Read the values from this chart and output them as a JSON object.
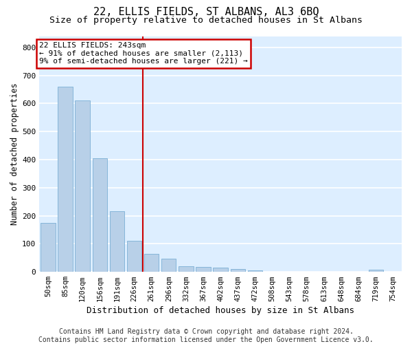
{
  "title": "22, ELLIS FIELDS, ST ALBANS, AL3 6BQ",
  "subtitle": "Size of property relative to detached houses in St Albans",
  "xlabel": "Distribution of detached houses by size in St Albans",
  "ylabel": "Number of detached properties",
  "footer_line1": "Contains HM Land Registry data © Crown copyright and database right 2024.",
  "footer_line2": "Contains public sector information licensed under the Open Government Licence v3.0.",
  "bar_labels": [
    "50sqm",
    "85sqm",
    "120sqm",
    "156sqm",
    "191sqm",
    "226sqm",
    "261sqm",
    "296sqm",
    "332sqm",
    "367sqm",
    "402sqm",
    "437sqm",
    "472sqm",
    "508sqm",
    "543sqm",
    "578sqm",
    "613sqm",
    "648sqm",
    "684sqm",
    "719sqm",
    "754sqm"
  ],
  "bar_values": [
    175,
    660,
    610,
    405,
    215,
    110,
    63,
    47,
    20,
    17,
    15,
    10,
    5,
    0,
    0,
    0,
    0,
    0,
    0,
    8,
    0
  ],
  "bar_color": "#b8d0e8",
  "bar_edgecolor": "#7aafd4",
  "ylim_max": 840,
  "yticks": [
    0,
    100,
    200,
    300,
    400,
    500,
    600,
    700,
    800
  ],
  "red_line_index": 6,
  "red_line_color": "#cc0000",
  "annotation_line1": "22 ELLIS FIELDS: 243sqm",
  "annotation_line2": "← 91% of detached houses are smaller (2,113)",
  "annotation_line3": "9% of semi-detached houses are larger (221) →",
  "annotation_box_edgecolor": "#cc0000",
  "plot_bg_color": "#ddeeff",
  "fig_bg_color": "#ffffff",
  "grid_color": "#ffffff",
  "title_fontsize": 11,
  "subtitle_fontsize": 9.5,
  "ylabel_fontsize": 8.5,
  "xlabel_fontsize": 9,
  "annotation_fontsize": 8,
  "footer_fontsize": 7,
  "tick_fontsize": 7.5
}
